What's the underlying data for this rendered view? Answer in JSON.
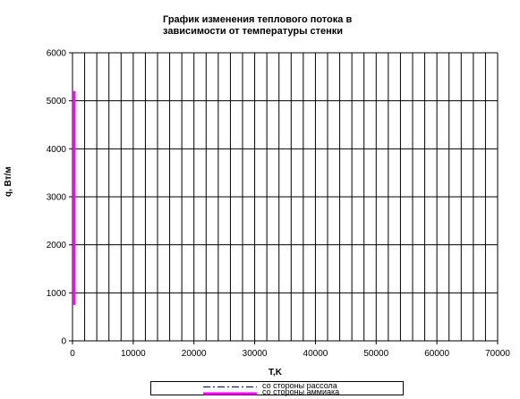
{
  "chart_data": {
    "type": "line",
    "title": "График изменения теплового потока в\nзависимости от температуры стенки",
    "xlabel": "T,K",
    "ylabel": "q, Вт/м",
    "xlim": [
      0,
      70000
    ],
    "ylim": [
      0,
      6000
    ],
    "xticks": [
      0,
      10000,
      20000,
      30000,
      40000,
      50000,
      60000,
      70000
    ],
    "yticks": [
      0,
      1000,
      2000,
      3000,
      4000,
      5000,
      6000
    ],
    "x_minor_step": 2000,
    "grid": "vertical lines every 2000, horizontal lines every 1000",
    "legend_position": "bottom",
    "series": [
      {
        "name": "со стороны рассола",
        "color": "#000080",
        "style": "dash-dot",
        "x": [
          250,
          250
        ],
        "y": [
          750,
          2350
        ]
      },
      {
        "name": "со стороны аммиака",
        "color": "#FF00FF",
        "style": "solid-thick",
        "x": [
          250,
          250
        ],
        "y": [
          750,
          5200
        ]
      }
    ]
  }
}
